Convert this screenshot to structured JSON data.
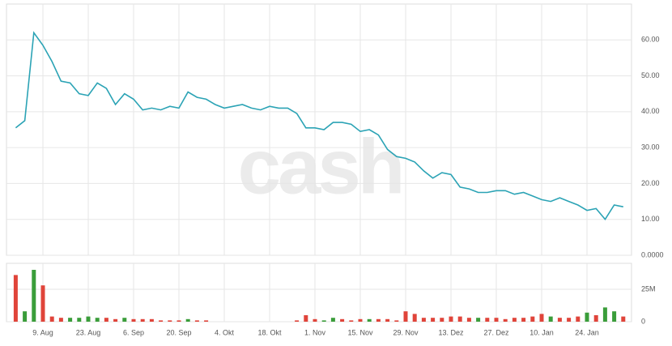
{
  "chart_data": [
    {
      "type": "line",
      "watermark": "cash",
      "grid": true,
      "categories": [
        null,
        null,
        null,
        "9. Aug",
        null,
        null,
        null,
        null,
        "23. Aug",
        null,
        null,
        null,
        null,
        "6. Sep",
        null,
        null,
        null,
        null,
        "20. Sep",
        null,
        null,
        null,
        null,
        "4. Okt",
        null,
        null,
        null,
        null,
        "18. Okt",
        null,
        null,
        null,
        null,
        "1. Nov",
        null,
        null,
        null,
        null,
        "15. Nov",
        null,
        null,
        null,
        null,
        "29. Nov",
        null,
        null,
        null,
        null,
        "13. Dez",
        null,
        null,
        null,
        null,
        "27. Dez",
        null,
        null,
        null,
        null,
        "10. Jan",
        null,
        null,
        null,
        null,
        "24. Jan",
        null,
        null,
        null,
        null
      ],
      "series": [
        {
          "color": "#2ba3b5",
          "values": [
            35.5,
            37.5,
            62,
            58.5,
            54,
            48.5,
            48,
            45,
            44.5,
            48,
            46.5,
            42,
            45,
            43.5,
            40.5,
            41,
            40.5,
            41.5,
            41,
            45.5,
            44,
            43.5,
            42,
            41,
            41.5,
            42,
            41,
            40.5,
            41.5,
            41,
            41,
            39.5,
            35.5,
            35.5,
            35,
            37,
            37,
            36.5,
            34.5,
            35,
            33.5,
            29.5,
            27.5,
            27,
            26,
            23.5,
            21.5,
            23,
            22.5,
            19,
            18.5,
            17.5,
            17.5,
            18,
            18,
            17,
            17.5,
            16.5,
            15.5,
            15,
            16,
            15,
            14,
            12.5,
            13,
            10,
            14,
            13.5
          ]
        }
      ],
      "ylim": [
        0,
        70
      ],
      "yticks": [
        {
          "value": 0,
          "label": "0.0000"
        },
        {
          "value": 10,
          "label": "10.00"
        },
        {
          "value": 20,
          "label": "20.00"
        },
        {
          "value": 30,
          "label": "30.00"
        },
        {
          "value": 40,
          "label": "40.00"
        },
        {
          "value": 50,
          "label": "50.00"
        },
        {
          "value": 60,
          "label": "60.00"
        }
      ]
    },
    {
      "type": "bar",
      "values": [
        36000000,
        8000000,
        40000000,
        28000000,
        4000000,
        3000000,
        3000000,
        3000000,
        4000000,
        3000000,
        3000000,
        2000000,
        3000000,
        2000000,
        2000000,
        2000000,
        1000000,
        1000000,
        1000000,
        2000000,
        1000000,
        1000000,
        0,
        0,
        0,
        0,
        0,
        0,
        0,
        0,
        0,
        1000000,
        5000000,
        2000000,
        1000000,
        3000000,
        2000000,
        1000000,
        2000000,
        2000000,
        2000000,
        2000000,
        1000000,
        8000000,
        6000000,
        3000000,
        3000000,
        3000000,
        4000000,
        4000000,
        3000000,
        3000000,
        3000000,
        3000000,
        2000000,
        3000000,
        3000000,
        4000000,
        6000000,
        4000000,
        3000000,
        3000000,
        4000000,
        7000000,
        5000000,
        11000000,
        8000000,
        4000000
      ],
      "colors": [
        "#e0443a",
        "#3a9d3a",
        "#3a9d3a",
        "#e0443a",
        "#e0443a",
        "#e0443a",
        "#3a9d3a",
        "#3a9d3a",
        "#3a9d3a",
        "#3a9d3a",
        "#e0443a",
        "#e0443a",
        "#3a9d3a",
        "#e0443a",
        "#e0443a",
        "#e0443a",
        "#e0443a",
        "#e0443a",
        "#e0443a",
        "#3a9d3a",
        "#e0443a",
        "#e0443a",
        "#e0443a",
        "#e0443a",
        "#e0443a",
        "#e0443a",
        "#e0443a",
        "#e0443a",
        "#e0443a",
        "#e0443a",
        "#e0443a",
        "#e0443a",
        "#e0443a",
        "#e0443a",
        "#3a9d3a",
        "#3a9d3a",
        "#e0443a",
        "#e0443a",
        "#e0443a",
        "#3a9d3a",
        "#e0443a",
        "#e0443a",
        "#e0443a",
        "#e0443a",
        "#e0443a",
        "#e0443a",
        "#e0443a",
        "#e0443a",
        "#e0443a",
        "#e0443a",
        "#e0443a",
        "#3a9d3a",
        "#e0443a",
        "#e0443a",
        "#e0443a",
        "#e0443a",
        "#e0443a",
        "#e0443a",
        "#e0443a",
        "#3a9d3a",
        "#e0443a",
        "#e0443a",
        "#e0443a",
        "#3a9d3a",
        "#e0443a",
        "#3a9d3a",
        "#3a9d3a",
        "#e0443a"
      ],
      "ylim": [
        0,
        45000000
      ],
      "yticks": [
        0,
        {
          "value": 25000000,
          "label": "25M"
        }
      ]
    }
  ]
}
